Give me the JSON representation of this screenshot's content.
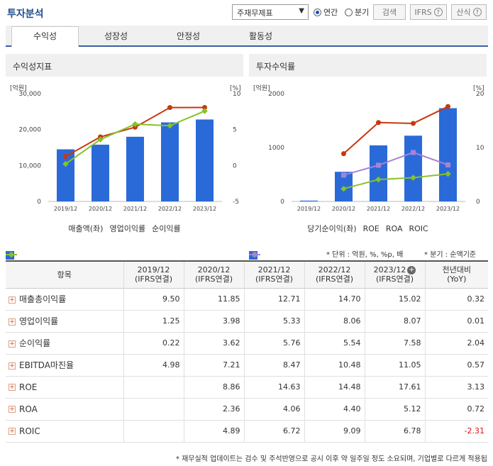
{
  "header": {
    "title": "투자분석",
    "select_value": "주재무제표",
    "radio_annual": "연간",
    "radio_quarter": "분기",
    "search_label": "검색",
    "ifrs_label": "IFRS",
    "formula_label": "산식"
  },
  "tabs": [
    "수익성",
    "성장성",
    "안정성",
    "활동성"
  ],
  "left_chart": {
    "panel_title": "수익성지표",
    "y_left_unit": "[억원]",
    "y_right_unit": "[%]",
    "legend": [
      "매출액(좌)",
      "영업이익률",
      "순이익률"
    ]
  },
  "right_chart": {
    "panel_title": "투자수익률",
    "y_left_unit": "[억원]",
    "y_right_unit": "[%]",
    "legend": [
      "당기순이익(좌)",
      "ROE",
      "ROA",
      "ROIC"
    ]
  },
  "chart_data": [
    {
      "type": "bar",
      "categories": [
        "2019/12",
        "2020/12",
        "2021/12",
        "2022/12",
        "2023/12"
      ],
      "y_left_ticks": [
        "30,000",
        "20,000",
        "10,000",
        "0"
      ],
      "y_right_ticks": [
        "10",
        "5",
        "0",
        "-5"
      ],
      "ylim": [
        0,
        30000
      ],
      "y2lim": [
        -5,
        10
      ],
      "series": [
        {
          "name": "매출액(좌)",
          "kind": "bar",
          "axis": "left",
          "color": "#2a6ad8",
          "values": [
            14500,
            15800,
            18000,
            22000,
            22800
          ]
        },
        {
          "name": "영업이익률",
          "kind": "line",
          "axis": "right",
          "color": "#c8380f",
          "values": [
            1.25,
            3.98,
            5.33,
            8.06,
            8.07
          ]
        },
        {
          "name": "순이익률",
          "kind": "line",
          "axis": "right",
          "color": "#86c22a",
          "values": [
            0.22,
            3.62,
            5.76,
            5.54,
            7.58
          ]
        }
      ]
    },
    {
      "type": "bar",
      "categories": [
        "2019/12",
        "2020/12",
        "2021/12",
        "2022/12",
        "2023/12"
      ],
      "y_left_ticks": [
        "2000",
        "1000",
        "0"
      ],
      "y_right_ticks": [
        "20",
        "10",
        "0"
      ],
      "ylim": [
        0,
        2000
      ],
      "y2lim": [
        0,
        20
      ],
      "series": [
        {
          "name": "당기순이익(좌)",
          "kind": "bar",
          "axis": "left",
          "color": "#2a6ad8",
          "values": [
            15,
            550,
            1040,
            1220,
            1730
          ]
        },
        {
          "name": "ROE",
          "kind": "line",
          "axis": "right",
          "color": "#c8380f",
          "values": [
            null,
            8.86,
            14.63,
            14.48,
            17.61
          ]
        },
        {
          "name": "ROA",
          "kind": "line",
          "axis": "right",
          "color": "#86c22a",
          "values": [
            null,
            2.36,
            4.06,
            4.4,
            5.12
          ]
        },
        {
          "name": "ROIC",
          "kind": "line",
          "axis": "right",
          "color": "#a682d8",
          "values": [
            null,
            4.89,
            6.72,
            9.09,
            6.78
          ]
        }
      ]
    }
  ],
  "notes": {
    "unit": "* 단위 : 억원, %, %p, 배",
    "quarter": "* 분기 : 순액기준",
    "footer": "* 재무실적 업데이트는 검수 및 주석반영으로 공시 이후 약 일주일 정도 소요되며, 기업별로 다르게 적용됩"
  },
  "table": {
    "col_item": "항목",
    "columns": [
      {
        "year": "2019/12",
        "sub": "(IFRS연결)"
      },
      {
        "year": "2020/12",
        "sub": "(IFRS연결)"
      },
      {
        "year": "2021/12",
        "sub": "(IFRS연결)"
      },
      {
        "year": "2022/12",
        "sub": "(IFRS연결)"
      },
      {
        "year": "2023/12",
        "sub": "(IFRS연결)"
      }
    ],
    "col_yoy": "전년대비",
    "col_yoy_sub": "(YoY)",
    "rows": [
      {
        "label": "매출총이익률",
        "values": [
          "9.50",
          "11.85",
          "12.71",
          "14.70",
          "15.02"
        ],
        "yoy": "0.32"
      },
      {
        "label": "영업이익률",
        "values": [
          "1.25",
          "3.98",
          "5.33",
          "8.06",
          "8.07"
        ],
        "yoy": "0.01"
      },
      {
        "label": "순이익률",
        "values": [
          "0.22",
          "3.62",
          "5.76",
          "5.54",
          "7.58"
        ],
        "yoy": "2.04"
      },
      {
        "label": "EBITDA마진율",
        "values": [
          "4.98",
          "7.21",
          "8.47",
          "10.48",
          "11.05"
        ],
        "yoy": "0.57"
      },
      {
        "label": "ROE",
        "values": [
          "",
          "8.86",
          "14.63",
          "14.48",
          "17.61"
        ],
        "yoy": "3.13"
      },
      {
        "label": "ROA",
        "values": [
          "",
          "2.36",
          "4.06",
          "4.40",
          "5.12"
        ],
        "yoy": "0.72"
      },
      {
        "label": "ROIC",
        "values": [
          "",
          "4.89",
          "6.72",
          "9.09",
          "6.78"
        ],
        "yoy": "-2.31"
      }
    ]
  }
}
